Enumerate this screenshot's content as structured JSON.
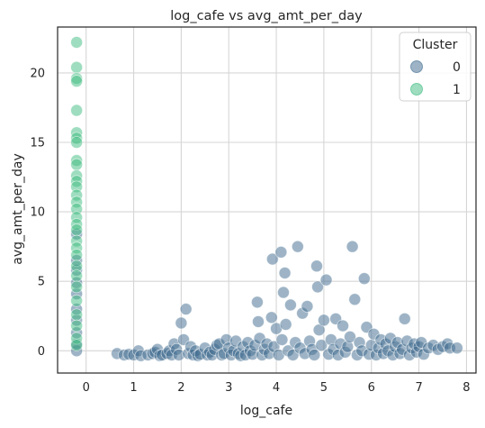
{
  "chart_data": {
    "type": "scatter",
    "title": "log_cafe vs avg_amt_per_day",
    "xlabel": "log_cafe",
    "ylabel": "avg_amt_per_day",
    "xlim": [
      -0.6,
      8.2
    ],
    "ylim": [
      -1.6,
      23.3
    ],
    "xticks": [
      0,
      1,
      2,
      3,
      4,
      5,
      6,
      7,
      8
    ],
    "yticks": [
      0,
      5,
      10,
      15,
      20
    ],
    "grid": true,
    "legend": {
      "title": "Cluster",
      "placement": "top-right",
      "entries": [
        {
          "label": "0",
          "color": "#3e6a8e"
        },
        {
          "label": "1",
          "color": "#3dbb80"
        }
      ]
    },
    "series": [
      {
        "name": "0",
        "color": "#3e6a8e",
        "points": [
          [
            -0.2,
            0.0
          ],
          [
            -0.2,
            0.5
          ],
          [
            -0.2,
            1.3
          ],
          [
            -0.2,
            2.2
          ],
          [
            -0.2,
            3.0
          ],
          [
            -0.2,
            4.1
          ],
          [
            -0.2,
            4.9
          ],
          [
            -0.2,
            5.8
          ],
          [
            -0.2,
            6.5
          ],
          [
            -0.2,
            8.4
          ],
          [
            0.65,
            -0.2
          ],
          [
            0.8,
            -0.3
          ],
          [
            0.9,
            -0.25
          ],
          [
            1.0,
            -0.3
          ],
          [
            1.1,
            0.0
          ],
          [
            1.15,
            -0.35
          ],
          [
            1.3,
            -0.3
          ],
          [
            1.4,
            -0.2
          ],
          [
            1.45,
            -0.1
          ],
          [
            1.5,
            0.1
          ],
          [
            1.55,
            -0.35
          ],
          [
            1.6,
            -0.3
          ],
          [
            1.7,
            -0.2
          ],
          [
            1.75,
            0.0
          ],
          [
            1.8,
            -0.3
          ],
          [
            1.85,
            0.5
          ],
          [
            1.9,
            0.1
          ],
          [
            1.95,
            -0.3
          ],
          [
            2.0,
            2.0
          ],
          [
            2.05,
            0.8
          ],
          [
            2.1,
            3.0
          ],
          [
            2.15,
            -0.2
          ],
          [
            2.2,
            0.3
          ],
          [
            2.25,
            -0.3
          ],
          [
            2.3,
            0.0
          ],
          [
            2.35,
            -0.35
          ],
          [
            2.4,
            -0.25
          ],
          [
            2.5,
            0.2
          ],
          [
            2.55,
            -0.3
          ],
          [
            2.6,
            -0.1
          ],
          [
            2.65,
            -0.3
          ],
          [
            2.7,
            0.1
          ],
          [
            2.75,
            0.4
          ],
          [
            2.8,
            0.5
          ],
          [
            2.85,
            -0.3
          ],
          [
            2.9,
            -0.2
          ],
          [
            2.95,
            0.8
          ],
          [
            3.0,
            0.2
          ],
          [
            3.05,
            -0.3
          ],
          [
            3.1,
            0.0
          ],
          [
            3.15,
            0.7
          ],
          [
            3.2,
            -0.2
          ],
          [
            3.25,
            -0.35
          ],
          [
            3.3,
            0.3
          ],
          [
            3.35,
            -0.3
          ],
          [
            3.4,
            0.6
          ],
          [
            3.45,
            0.0
          ],
          [
            3.5,
            -0.25
          ],
          [
            3.55,
            0.4
          ],
          [
            3.6,
            3.5
          ],
          [
            3.62,
            2.1
          ],
          [
            3.65,
            0.9
          ],
          [
            3.7,
            -0.3
          ],
          [
            3.75,
            0.1
          ],
          [
            3.8,
            0.5
          ],
          [
            3.85,
            -0.2
          ],
          [
            3.9,
            2.4
          ],
          [
            3.92,
            6.6
          ],
          [
            3.95,
            0.3
          ],
          [
            4.0,
            1.6
          ],
          [
            4.05,
            -0.3
          ],
          [
            4.1,
            7.1
          ],
          [
            4.12,
            0.8
          ],
          [
            4.15,
            4.2
          ],
          [
            4.18,
            5.6
          ],
          [
            4.2,
            1.9
          ],
          [
            4.25,
            0.0
          ],
          [
            4.3,
            3.3
          ],
          [
            4.35,
            -0.3
          ],
          [
            4.4,
            0.6
          ],
          [
            4.45,
            7.5
          ],
          [
            4.5,
            0.2
          ],
          [
            4.55,
            2.7
          ],
          [
            4.6,
            -0.2
          ],
          [
            4.65,
            3.2
          ],
          [
            4.7,
            0.7
          ],
          [
            4.75,
            0.1
          ],
          [
            4.8,
            -0.3
          ],
          [
            4.85,
            6.1
          ],
          [
            4.87,
            4.6
          ],
          [
            4.9,
            1.5
          ],
          [
            4.95,
            0.4
          ],
          [
            5.0,
            2.2
          ],
          [
            5.05,
            5.1
          ],
          [
            5.1,
            -0.25
          ],
          [
            5.15,
            0.8
          ],
          [
            5.2,
            0.1
          ],
          [
            5.25,
            2.3
          ],
          [
            5.3,
            -0.3
          ],
          [
            5.35,
            0.5
          ],
          [
            5.4,
            1.8
          ],
          [
            5.45,
            -0.1
          ],
          [
            5.5,
            0.3
          ],
          [
            5.55,
            1.0
          ],
          [
            5.6,
            7.5
          ],
          [
            5.65,
            3.7
          ],
          [
            5.7,
            -0.3
          ],
          [
            5.75,
            0.6
          ],
          [
            5.8,
            0.0
          ],
          [
            5.85,
            5.2
          ],
          [
            5.9,
            1.7
          ],
          [
            5.95,
            -0.25
          ],
          [
            6.0,
            0.4
          ],
          [
            6.05,
            1.2
          ],
          [
            6.1,
            -0.3
          ],
          [
            6.15,
            0.2
          ],
          [
            6.2,
            0.8
          ],
          [
            6.25,
            -0.2
          ],
          [
            6.3,
            0.5
          ],
          [
            6.35,
            0.0
          ],
          [
            6.4,
            0.9
          ],
          [
            6.45,
            -0.3
          ],
          [
            6.5,
            0.3
          ],
          [
            6.55,
            0.6
          ],
          [
            6.6,
            -0.2
          ],
          [
            6.65,
            0.1
          ],
          [
            6.7,
            2.3
          ],
          [
            6.75,
            0.7
          ],
          [
            6.8,
            -0.3
          ],
          [
            6.85,
            0.2
          ],
          [
            6.9,
            0.5
          ],
          [
            6.95,
            -0.1
          ],
          [
            7.0,
            0.3
          ],
          [
            7.05,
            0.6
          ],
          [
            7.1,
            -0.25
          ],
          [
            7.2,
            0.2
          ],
          [
            7.3,
            0.4
          ],
          [
            7.4,
            0.1
          ],
          [
            7.5,
            0.3
          ],
          [
            7.6,
            0.5
          ],
          [
            7.65,
            0.2
          ],
          [
            7.8,
            0.2
          ]
        ]
      },
      {
        "name": "1",
        "color": "#3dbb80",
        "points": [
          [
            -0.2,
            22.2
          ],
          [
            -0.2,
            20.4
          ],
          [
            -0.2,
            19.6
          ],
          [
            -0.2,
            19.4
          ],
          [
            -0.2,
            17.3
          ],
          [
            -0.2,
            15.7
          ],
          [
            -0.2,
            15.3
          ],
          [
            -0.2,
            15.0
          ],
          [
            -0.2,
            13.7
          ],
          [
            -0.2,
            13.4
          ],
          [
            -0.2,
            12.6
          ],
          [
            -0.2,
            12.2
          ],
          [
            -0.2,
            11.8
          ],
          [
            -0.2,
            11.2
          ],
          [
            -0.2,
            10.7
          ],
          [
            -0.2,
            10.2
          ],
          [
            -0.2,
            9.6
          ],
          [
            -0.2,
            9.1
          ],
          [
            -0.2,
            8.7
          ],
          [
            -0.2,
            7.9
          ],
          [
            -0.2,
            7.4
          ],
          [
            -0.2,
            6.9
          ],
          [
            -0.2,
            6.1
          ],
          [
            -0.2,
            5.4
          ],
          [
            -0.2,
            4.6
          ],
          [
            -0.2,
            3.6
          ],
          [
            -0.2,
            2.6
          ],
          [
            -0.2,
            1.8
          ],
          [
            -0.2,
            0.9
          ],
          [
            -0.2,
            0.4
          ]
        ]
      }
    ]
  }
}
